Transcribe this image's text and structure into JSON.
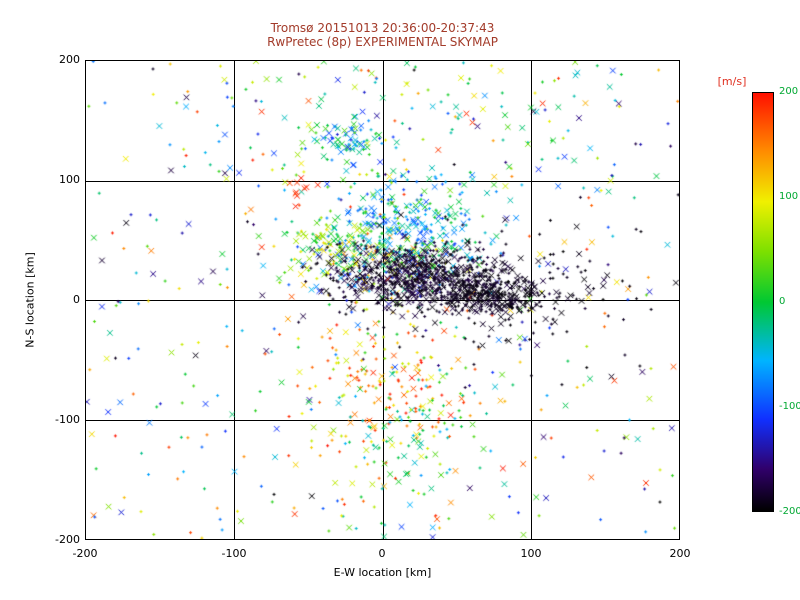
{
  "title": {
    "line1": "Tromsø 20151013 20:36:00-20:37:43",
    "line2": "RwPretec (8p) EXPERIMENTAL SKYMAP",
    "color": "#a33b2a"
  },
  "axes": {
    "xlabel": "E-W location [km]",
    "ylabel": "N-S location [km]",
    "xticks": [
      "-200",
      "-100",
      "0",
      "100",
      "200"
    ],
    "yticks": [
      "200",
      "100",
      "0",
      "-100",
      "-200"
    ],
    "tick_color": "#000000"
  },
  "colorbar": {
    "label": "[m/s]",
    "label_color": "#e03020",
    "ticks": [
      "200",
      "100",
      "0",
      "-100",
      "-200"
    ],
    "tick_color": "#00a832"
  },
  "chart_data": {
    "type": "scatter",
    "title": "Tromsø 20151013 20:36:00-20:37:43",
    "subtitle": "RwPretec (8p) EXPERIMENTAL SKYMAP",
    "xlabel": "E-W location [km]",
    "ylabel": "N-S location [km]",
    "xlim": [
      -200,
      200
    ],
    "ylim": [
      -200,
      200
    ],
    "grid_positions": [
      -100,
      0,
      100
    ],
    "value_label": "[m/s]",
    "vlim": [
      -200,
      200
    ],
    "colormap": [
      [
        0.0,
        "#000000"
      ],
      [
        0.1,
        "#30006a"
      ],
      [
        0.22,
        "#1030ff"
      ],
      [
        0.36,
        "#00b4ff"
      ],
      [
        0.5,
        "#00c832"
      ],
      [
        0.62,
        "#7ce000"
      ],
      [
        0.74,
        "#f0f000"
      ],
      [
        0.86,
        "#ff8c00"
      ],
      [
        1.0,
        "#ff1000"
      ]
    ],
    "seed": 20151013,
    "clusters": [
      {
        "name": "background-scatter",
        "type": "uniform",
        "x0": -200,
        "x1": 200,
        "y0": -200,
        "y1": 200,
        "n": 420,
        "v": [
          -200,
          200
        ],
        "xfrac": 0.35
      },
      {
        "name": "top-band-mixed",
        "type": "uniform",
        "x0": -120,
        "x1": 160,
        "y0": 90,
        "y1": 200,
        "n": 110,
        "v": [
          -120,
          100
        ],
        "xfrac": 0.5
      },
      {
        "name": "center-multicolor-overlay",
        "type": "gauss",
        "cx": -5,
        "cy": 32,
        "sx": 26,
        "sy": 16,
        "n": 150,
        "v": [
          -150,
          150
        ],
        "xfrac": 0.55
      },
      {
        "name": "cyan-blue-upper-cluster",
        "type": "gauss",
        "cx": 15,
        "cy": 62,
        "sx": 28,
        "sy": 22,
        "n": 300,
        "v": [
          -110,
          30
        ],
        "xfrac": 0.45
      },
      {
        "name": "green-yellow-left-cluster",
        "type": "gauss",
        "cx": -40,
        "cy": 45,
        "sx": 18,
        "sy": 14,
        "n": 90,
        "v": [
          -20,
          120
        ],
        "xfrac": 0.5
      },
      {
        "name": "blue-green-knot-upper-left",
        "type": "gauss",
        "cx": -25,
        "cy": 135,
        "sx": 11,
        "sy": 9,
        "n": 70,
        "v": [
          -130,
          30
        ],
        "xfrac": 0.5
      },
      {
        "name": "orange-red-lower-fan",
        "type": "gauss",
        "cx": 5,
        "cy": -78,
        "sx": 28,
        "sy": 42,
        "n": 180,
        "v": [
          70,
          200
        ],
        "xfrac": 0.3
      },
      {
        "name": "green-cyan-lower-cluster",
        "type": "gauss",
        "cx": 28,
        "cy": -110,
        "sx": 26,
        "sy": 32,
        "n": 90,
        "v": [
          -60,
          40
        ],
        "xfrac": 0.35
      },
      {
        "name": "black-dense-core",
        "type": "gauss",
        "cx": 25,
        "cy": 18,
        "sx": 30,
        "sy": 13,
        "n": 650,
        "v": [
          -200,
          -172
        ],
        "xfrac": 0.4
      },
      {
        "name": "black-east-tail",
        "type": "gauss",
        "cx": 72,
        "cy": 3,
        "sx": 22,
        "sy": 8,
        "n": 260,
        "v": [
          -200,
          -180
        ],
        "xfrac": 0.35
      },
      {
        "name": "black-sparse-right",
        "type": "gauss",
        "cx": 90,
        "cy": 12,
        "sx": 55,
        "sy": 32,
        "n": 140,
        "v": [
          -200,
          -184
        ],
        "xfrac": 0.3
      },
      {
        "name": "red-knot-upper-left",
        "type": "gauss",
        "cx": -55,
        "cy": 95,
        "sx": 6,
        "sy": 5,
        "n": 10,
        "v": [
          175,
          200
        ],
        "xfrac": 0.9
      }
    ]
  }
}
